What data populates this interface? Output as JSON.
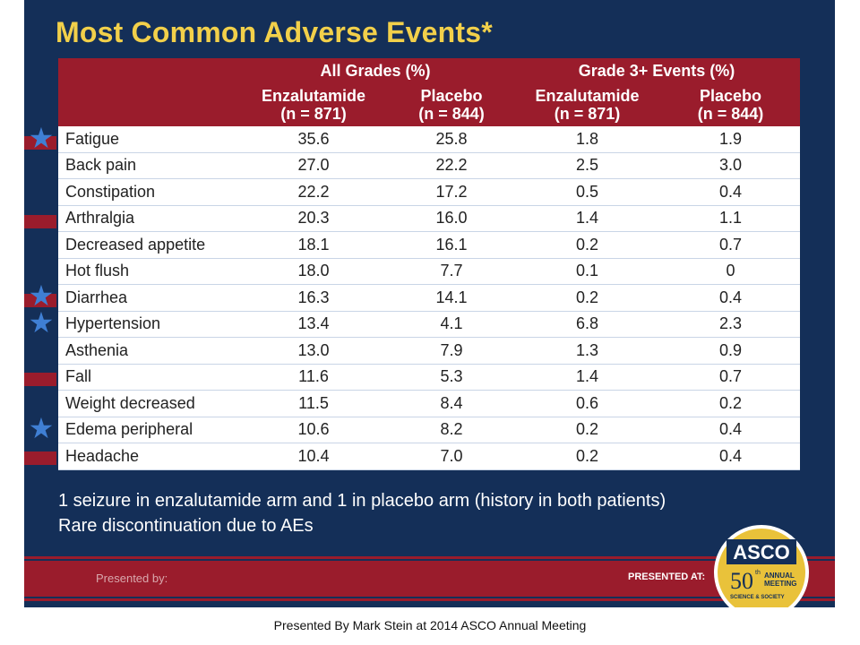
{
  "slide": {
    "title": "Most Common Adverse Events*",
    "table": {
      "group_headers": [
        "All Grades (%)",
        "Grade 3+ Events (%)"
      ],
      "sub_headers": [
        {
          "line1": "Enzalutamide",
          "line2": "(n = 871)"
        },
        {
          "line1": "Placebo",
          "line2": "(n = 844)"
        },
        {
          "line1": "Enzalutamide",
          "line2": "(n = 871)"
        },
        {
          "line1": "Placebo",
          "line2": "(n = 844)"
        }
      ],
      "rows": [
        {
          "event": "Fatigue",
          "values": [
            "35.6",
            "25.8",
            "1.8",
            "1.9"
          ],
          "starred": true
        },
        {
          "event": "Back pain",
          "values": [
            "27.0",
            "22.2",
            "2.5",
            "3.0"
          ],
          "starred": false
        },
        {
          "event": "Constipation",
          "values": [
            "22.2",
            "17.2",
            "0.5",
            "0.4"
          ],
          "starred": false
        },
        {
          "event": "Arthralgia",
          "values": [
            "20.3",
            "16.0",
            "1.4",
            "1.1"
          ],
          "starred": false
        },
        {
          "event": "Decreased appetite",
          "values": [
            "18.1",
            "16.1",
            "0.2",
            "0.7"
          ],
          "starred": false
        },
        {
          "event": "Hot flush",
          "values": [
            "18.0",
            "7.7",
            "0.1",
            "0"
          ],
          "starred": false
        },
        {
          "event": "Diarrhea",
          "values": [
            "16.3",
            "14.1",
            "0.2",
            "0.4"
          ],
          "starred": true
        },
        {
          "event": "Hypertension",
          "values": [
            "13.4",
            "4.1",
            "6.8",
            "2.3"
          ],
          "starred": true
        },
        {
          "event": "Asthenia",
          "values": [
            "13.0",
            "7.9",
            "1.3",
            "0.9"
          ],
          "starred": false
        },
        {
          "event": "Fall",
          "values": [
            "11.6",
            "5.3",
            "1.4",
            "0.7"
          ],
          "starred": false
        },
        {
          "event": "Weight decreased",
          "values": [
            "11.5",
            "8.4",
            "0.6",
            "0.2"
          ],
          "starred": false
        },
        {
          "event": "Edema peripheral",
          "values": [
            "10.6",
            "8.2",
            "0.2",
            "0.4"
          ],
          "starred": true
        },
        {
          "event": "Headache",
          "values": [
            "10.4",
            "7.0",
            "0.2",
            "0.4"
          ],
          "starred": false
        }
      ]
    },
    "notes": [
      "1 seizure in enzalutamide arm and 1 in placebo arm (history in both patients)",
      "Rare discontinuation due to AEs"
    ],
    "footer": {
      "presented_by": "Presented by:",
      "presented_at": "PRESENTED AT:"
    },
    "logo": {
      "name": "ASCO",
      "number": "50",
      "superscript": "th",
      "annual_line1": "ANNUAL",
      "annual_line2": "MEETING",
      "subline": "SCIENCE & SOCIETY"
    }
  },
  "caption": "Presented By Mark Stein at 2014 ASCO Annual Meeting",
  "colors": {
    "background": "#142f58",
    "title": "#f2d04a",
    "header": "#9a1c2c",
    "star": "#3f7fd4"
  },
  "icons": {
    "star": "star-icon"
  }
}
